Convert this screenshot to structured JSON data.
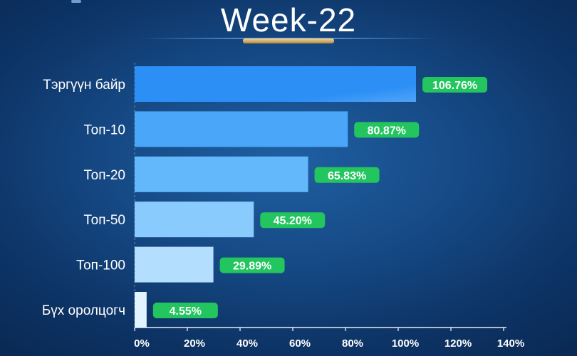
{
  "header": {
    "title": "Week-22"
  },
  "colors": {
    "background": "#164a86",
    "badge": "#22c55e",
    "title_bar": "#c9a35a",
    "bars": [
      "#2b8ff6",
      "#4aa6f8",
      "#63b7fb",
      "#8acbfd",
      "#b4defe",
      "#e2f4ff"
    ]
  },
  "chart_data": {
    "type": "bar",
    "orientation": "horizontal",
    "title": "Week-22",
    "categories": [
      "Тэргүүн байр",
      "Топ-10",
      "Топ-20",
      "Топ-50",
      "Топ-100",
      "Бүх оролцогч"
    ],
    "values": [
      106.76,
      80.87,
      65.83,
      45.2,
      29.89,
      4.55
    ],
    "value_labels": [
      "106.76%",
      "80.87%",
      "65.83%",
      "45.20%",
      "29.89%",
      "4.55%"
    ],
    "xlim": [
      0,
      140
    ],
    "xticks": [
      "0%",
      "20%",
      "40%",
      "60%",
      "80%",
      "100%",
      "120%",
      "140%"
    ],
    "xlabel": "",
    "ylabel": "",
    "grid": false,
    "legend": "none"
  }
}
